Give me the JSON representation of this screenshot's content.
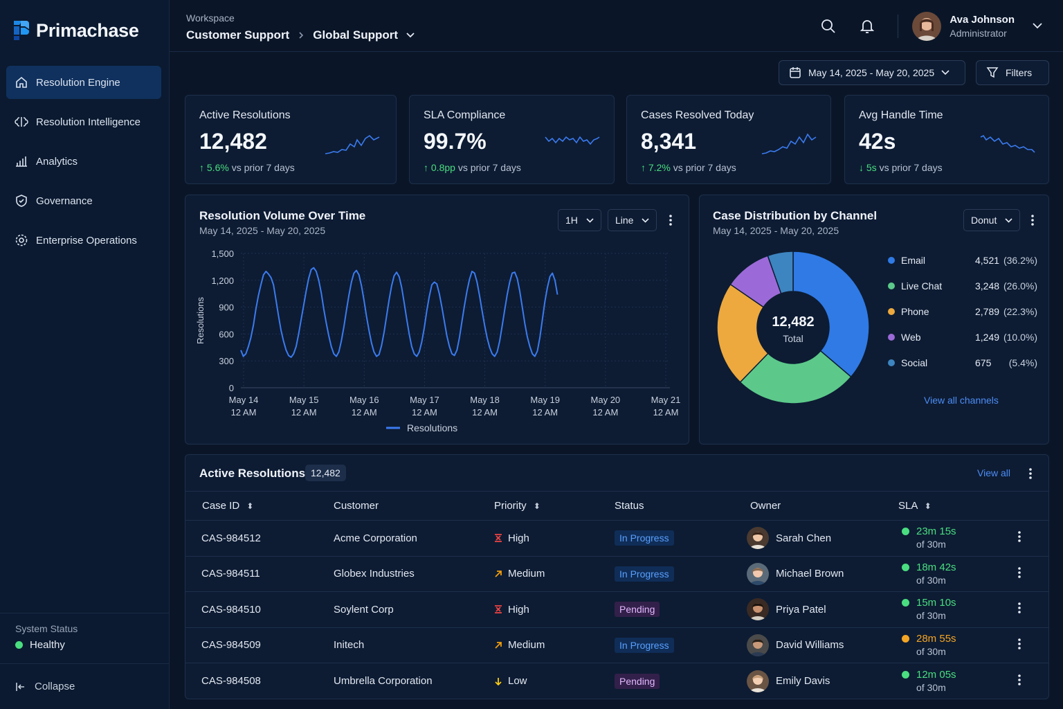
{
  "app": {
    "brand": "Primachase"
  },
  "sidebar": {
    "items": [
      {
        "label": "Resolution Engine",
        "icon": "home-icon",
        "active": true
      },
      {
        "label": "Resolution Intelligence",
        "icon": "brain-icon"
      },
      {
        "label": "Analytics",
        "icon": "bar-chart-icon"
      },
      {
        "label": "Governance",
        "icon": "shield-icon"
      },
      {
        "label": "Enterprise Operations",
        "icon": "gear-icon"
      }
    ],
    "status_label": "System Status",
    "status_value": "Healthy",
    "collapse_label": "Collapse"
  },
  "header": {
    "workspace_label": "Workspace",
    "crumb1": "Customer Support",
    "crumb2": "Global Support",
    "user_name": "Ava Johnson",
    "user_role": "Administrator"
  },
  "toolbar": {
    "date_range": "May 14, 2025 - May 20, 2025",
    "filters_label": "Filters"
  },
  "kpis": [
    {
      "title": "Active Resolutions",
      "value": "12,482",
      "delta": "5.6%",
      "delta_text": "vs prior 7 days",
      "direction": "up"
    },
    {
      "title": "SLA Compliance",
      "value": "99.7%",
      "delta": "0.8pp",
      "delta_text": "vs prior 7 days",
      "direction": "up"
    },
    {
      "title": "Cases Resolved Today",
      "value": "8,341",
      "delta": "7.2%",
      "delta_text": "vs prior 7 days",
      "direction": "up"
    },
    {
      "title": "Avg Handle Time",
      "value": "42s",
      "delta": "5s",
      "delta_text": "vs prior 7 days",
      "direction": "down"
    }
  ],
  "volume_chart": {
    "title": "Resolution Volume Over Time",
    "subtitle": "May 14, 2025 - May 20, 2025",
    "interval": "1H",
    "chart_type_label": "Line"
  },
  "channel_chart": {
    "title": "Case Distribution by Channel",
    "subtitle": "May 14, 2025 - May 20, 2025",
    "type_label": "Donut",
    "center_value": "12,482",
    "center_label": "Total",
    "view_all": "View all channels"
  },
  "table": {
    "title": "Active Resolutions",
    "count": "12,482",
    "view_all": "View all",
    "columns": [
      "Case ID",
      "Customer",
      "Priority",
      "Status",
      "Owner",
      "SLA"
    ],
    "rows": [
      {
        "id": "CAS-984512",
        "customer": "Acme Corporation",
        "priority": "High",
        "status": "In Progress",
        "owner": "Sarah Chen",
        "sla": "23m 15s",
        "sla_of": "of 30m",
        "sla_color": "#4ade80"
      },
      {
        "id": "CAS-984511",
        "customer": "Globex Industries",
        "priority": "Medium",
        "status": "In Progress",
        "owner": "Michael Brown",
        "sla": "18m 42s",
        "sla_of": "of 30m",
        "sla_color": "#4ade80"
      },
      {
        "id": "CAS-984510",
        "customer": "Soylent Corp",
        "priority": "High",
        "status": "Pending",
        "owner": "Priya Patel",
        "sla": "15m 10s",
        "sla_of": "of 30m",
        "sla_color": "#4ade80"
      },
      {
        "id": "CAS-984509",
        "customer": "Initech",
        "priority": "Medium",
        "status": "In Progress",
        "owner": "David Williams",
        "sla": "28m 55s",
        "sla_of": "of 30m",
        "sla_color": "#f5a524"
      },
      {
        "id": "CAS-984508",
        "customer": "Umbrella Corporation",
        "priority": "Low",
        "status": "Pending",
        "owner": "Emily Davis",
        "sla": "12m 05s",
        "sla_of": "of 30m",
        "sla_color": "#4ade80"
      }
    ]
  },
  "chart_data": [
    {
      "type": "line",
      "title": "Resolution Volume Over Time",
      "ylabel": "Resolutions",
      "xlabel": "",
      "ylim": [
        0,
        1500
      ],
      "yticks": [
        0,
        300,
        600,
        900,
        1200,
        1500
      ],
      "x_ticks": [
        "May 14 12 AM",
        "May 15 12 AM",
        "May 16 12 AM",
        "May 17 12 AM",
        "May 18 12 AM",
        "May 19 12 AM",
        "May 20 12 AM",
        "May 21 12 AM"
      ],
      "series": [
        {
          "name": "Resolutions",
          "color": "#3b7bf0",
          "note_values": "hourly values, daily cycle",
          "values": [
            420,
            350,
            380,
            460,
            560,
            700,
            880,
            1030,
            1150,
            1260,
            1300,
            1270,
            1230,
            1150,
            980,
            800,
            640,
            520,
            420,
            360,
            340,
            380,
            460,
            600,
            760,
            920,
            1080,
            1220,
            1320,
            1340,
            1300,
            1200,
            1060,
            880,
            720,
            580,
            460,
            380,
            350,
            400,
            520,
            680,
            860,
            1030,
            1180,
            1280,
            1310,
            1260,
            1140,
            980,
            800,
            640,
            500,
            400,
            350,
            370,
            470,
            620,
            800,
            980,
            1140,
            1250,
            1290,
            1240,
            1120,
            950,
            770,
            600,
            460,
            380,
            350,
            400,
            510,
            670,
            860,
            1020,
            1150,
            1180,
            1160,
            1050,
            900,
            740,
            580,
            460,
            380,
            360,
            420,
            560,
            740,
            920,
            1080,
            1210,
            1300,
            1280,
            1180,
            1030,
            860,
            700,
            560,
            450,
            380,
            350,
            400,
            520,
            690,
            870,
            1040,
            1180,
            1280,
            1290,
            1220,
            1080,
            900,
            720,
            570,
            460,
            380,
            350,
            410,
            560,
            760,
            960,
            1120,
            1240,
            1280,
            1200,
            1040
          ]
        }
      ],
      "legend": "bottom"
    },
    {
      "type": "pie",
      "title": "Case Distribution by Channel",
      "donut": true,
      "slices": [
        {
          "name": "Email",
          "value": 4521,
          "pct": "36.2%",
          "color": "#2f7ae5"
        },
        {
          "name": "Live Chat",
          "value": 3248,
          "pct": "26.0%",
          "color": "#5cc98a"
        },
        {
          "name": "Phone",
          "value": 2789,
          "pct": "22.3%",
          "color": "#eda93e"
        },
        {
          "name": "Web",
          "value": 1249,
          "pct": "10.0%",
          "color": "#9c6ad8"
        },
        {
          "name": "Social",
          "value": 675,
          "pct": "5.4%",
          "color": "#3d85c0"
        }
      ],
      "legend": "right"
    }
  ]
}
